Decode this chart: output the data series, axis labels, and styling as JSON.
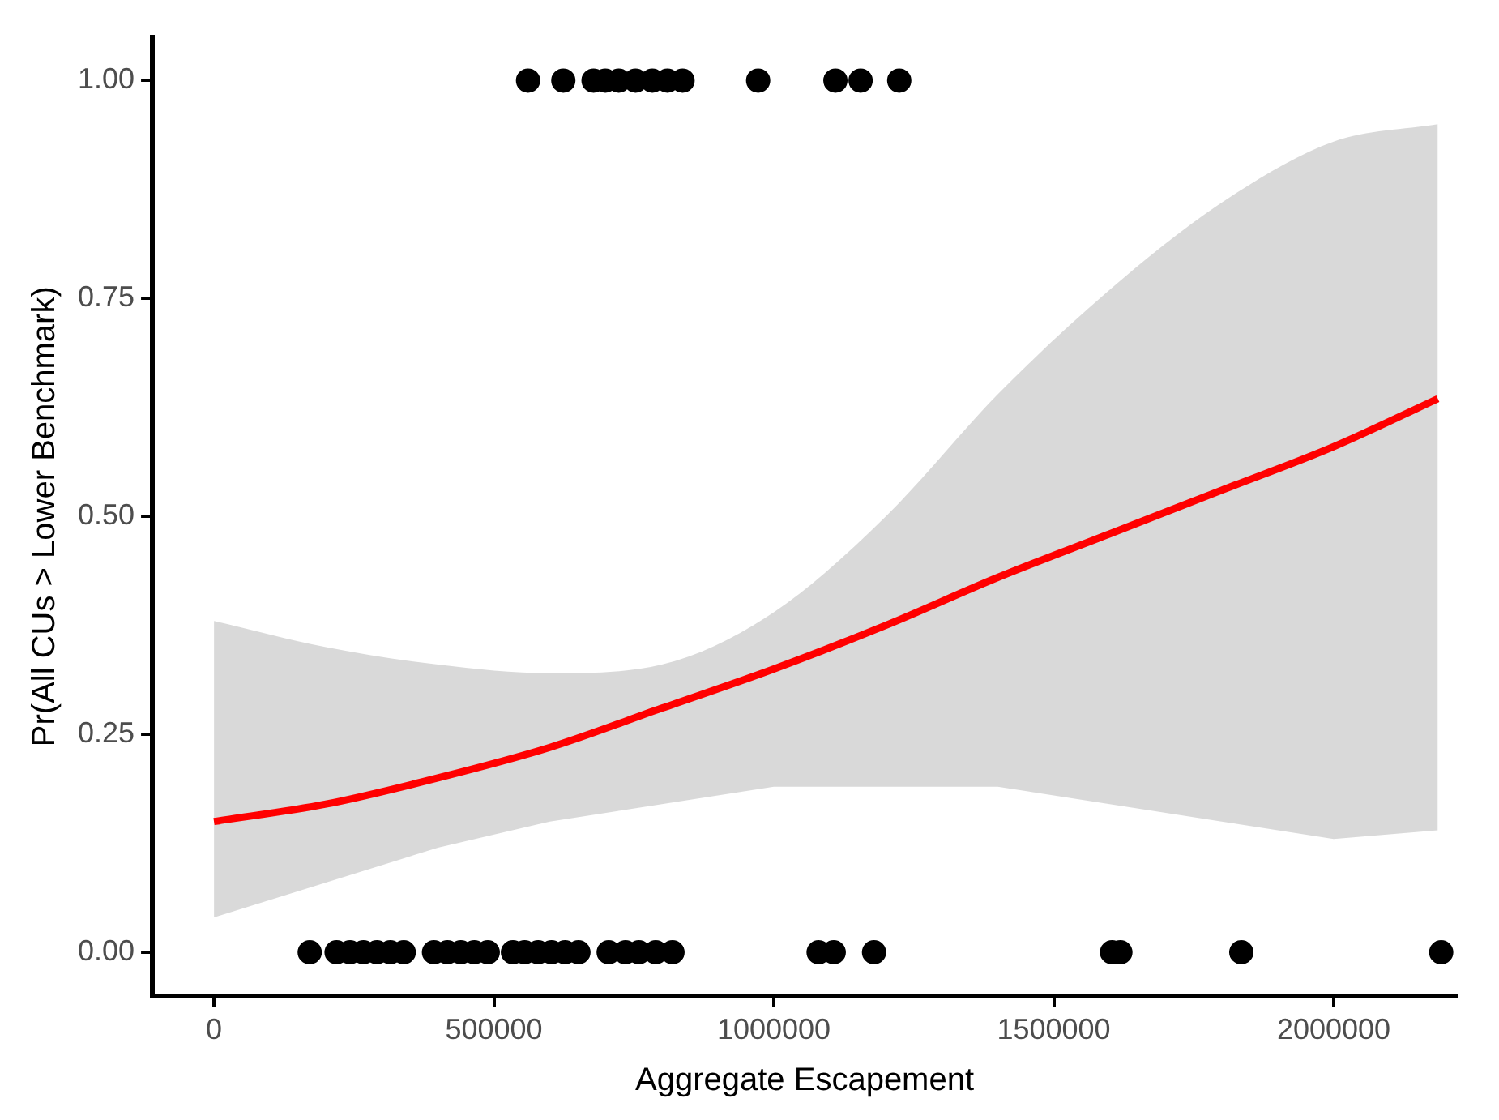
{
  "chart_data": {
    "type": "scatter",
    "xlabel": "Aggregate Escapement",
    "ylabel": "Pr(All CUs > Lower Benchmark)",
    "xlim": [
      -110000,
      2220000
    ],
    "ylim": [
      -0.05,
      1.05
    ],
    "xticks": [
      0,
      500000,
      1000000,
      1500000,
      2000000
    ],
    "yticks": [
      {
        "value": 0,
        "label": "0.00"
      },
      {
        "value": 0.25,
        "label": "0.25"
      },
      {
        "value": 0.5,
        "label": "0.50"
      },
      {
        "value": 0.75,
        "label": "0.75"
      },
      {
        "value": 1,
        "label": "1.00"
      }
    ],
    "grid": false,
    "legend": false,
    "marker": "circle",
    "series": [
      {
        "type": "scatter",
        "color": "#000000",
        "x": [
          561000,
          624000,
          678000,
          699000,
          723000,
          753000,
          783000,
          810000,
          837000,
          972000,
          1110000,
          1155000,
          1224000,
          171000,
          219000,
          243000,
          267000,
          291000,
          315000,
          339000,
          393000,
          417000,
          441000,
          465000,
          489000,
          534000,
          555000,
          579000,
          603000,
          627000,
          651000,
          705000,
          735000,
          759000,
          789000,
          819000,
          1080000,
          1107000,
          1179000,
          1604000,
          1619000,
          1835000,
          2192000
        ],
        "values": [
          1,
          1,
          1,
          1,
          1,
          1,
          1,
          1,
          1,
          1,
          1,
          1,
          1,
          0,
          0,
          0,
          0,
          0,
          0,
          0,
          0,
          0,
          0,
          0,
          0,
          0,
          0,
          0,
          0,
          0,
          0,
          0,
          0,
          0,
          0,
          0,
          0,
          0,
          0,
          0,
          0,
          0,
          0
        ]
      },
      {
        "type": "line",
        "color": "#ff0000",
        "marker": "none",
        "x": [
          0,
          200000,
          400000,
          600000,
          800000,
          1000000,
          1200000,
          1400000,
          1600000,
          1800000,
          2000000,
          2186000
        ],
        "values": [
          0.15,
          0.17,
          0.2,
          0.235,
          0.28,
          0.325,
          0.375,
          0.43,
          0.48,
          0.53,
          0.58,
          0.635
        ],
        "lower": [
          0.04,
          0.08,
          0.12,
          0.15,
          0.17,
          0.19,
          0.19,
          0.19,
          0.17,
          0.15,
          0.13,
          0.14
        ],
        "upper": [
          0.38,
          0.35,
          0.33,
          0.32,
          0.33,
          0.39,
          0.5,
          0.64,
          0.76,
          0.86,
          0.93,
          0.95
        ]
      }
    ]
  }
}
